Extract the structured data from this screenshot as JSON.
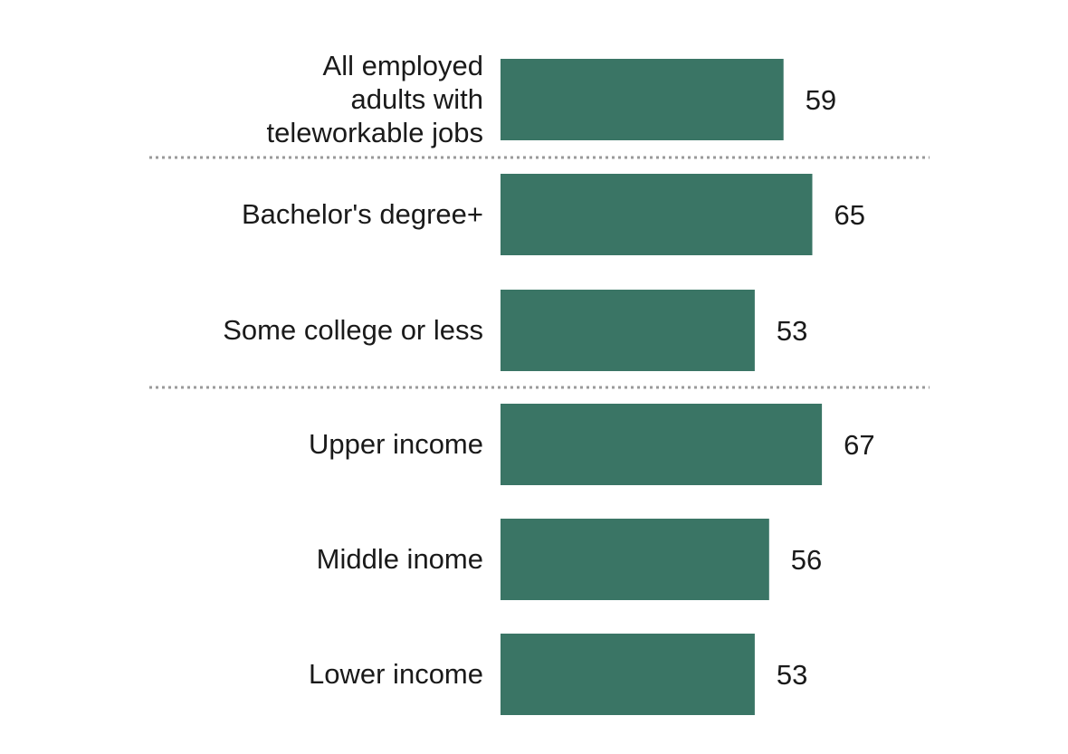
{
  "chart_data": {
    "type": "bar",
    "orientation": "horizontal",
    "categories": [
      [
        "All employed",
        "adults with",
        "teleworkable jobs"
      ],
      [
        "Bachelor's degree+"
      ],
      [
        "Some college or less"
      ],
      [
        "Upper income"
      ],
      [
        "Middle inome"
      ],
      [
        "Lower income"
      ]
    ],
    "values": [
      59,
      65,
      53,
      67,
      56,
      53
    ],
    "value_labels": [
      "59",
      "65",
      "53",
      "67",
      "56",
      "53"
    ],
    "groups": [
      [
        0
      ],
      [
        1,
        2
      ],
      [
        3,
        4,
        5
      ]
    ],
    "bar_color": "#3a7565",
    "divider_color": "#9a9a9a",
    "title": "",
    "xlabel": "",
    "ylabel": "",
    "xlim": [
      0,
      100
    ],
    "grid": false,
    "legend": "none"
  }
}
